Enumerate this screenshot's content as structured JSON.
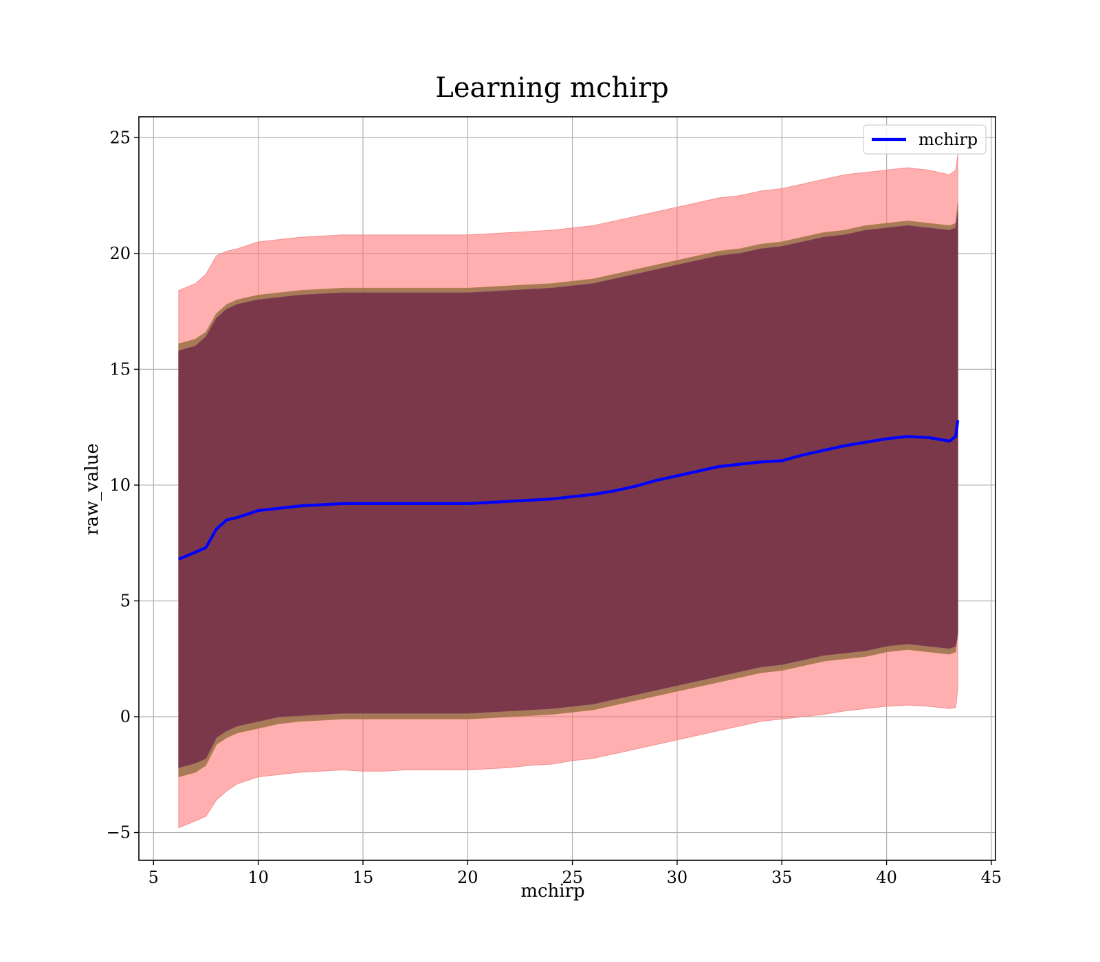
{
  "chart_data": {
    "type": "area",
    "title": "Learning mchirp",
    "xlabel": "mchirp",
    "ylabel": "raw_value",
    "xlim": [
      4.3,
      45.2
    ],
    "ylim": [
      -6.2,
      25.9
    ],
    "xticks": [
      5,
      10,
      15,
      20,
      25,
      30,
      35,
      40,
      45
    ],
    "yticks": [
      -5,
      0,
      5,
      10,
      15,
      20,
      25
    ],
    "xtick_labels": [
      "5",
      "10",
      "15",
      "20",
      "25",
      "30",
      "35",
      "40",
      "45"
    ],
    "ytick_labels": [
      "−5",
      "0",
      "5",
      "10",
      "15",
      "20",
      "25"
    ],
    "grid": true,
    "legend_position": "top-right",
    "x": [
      6.2,
      7,
      7.5,
      8,
      8.5,
      9,
      10,
      11,
      12,
      13,
      14,
      15,
      16,
      17,
      18,
      19,
      20,
      21,
      22,
      23,
      24,
      25,
      26,
      27,
      28,
      29,
      30,
      31,
      32,
      33,
      34,
      35,
      36,
      37,
      38,
      39,
      40,
      41,
      42,
      43,
      43.3,
      43.4
    ],
    "series": [
      {
        "name": "mchirp",
        "role": "line",
        "color": "#0000ff",
        "values": [
          6.8,
          7.1,
          7.3,
          8.1,
          8.5,
          8.6,
          8.9,
          9.0,
          9.1,
          9.15,
          9.2,
          9.2,
          9.2,
          9.2,
          9.2,
          9.2,
          9.2,
          9.25,
          9.3,
          9.35,
          9.4,
          9.5,
          9.6,
          9.75,
          9.95,
          10.2,
          10.4,
          10.6,
          10.8,
          10.9,
          11.0,
          11.05,
          11.3,
          11.5,
          11.7,
          11.85,
          12.0,
          12.1,
          12.05,
          11.9,
          12.1,
          12.8
        ]
      },
      {
        "name": "outer band upper",
        "role": "band_upper",
        "color": "#ff6d6d",
        "values": [
          18.4,
          18.7,
          19.1,
          19.9,
          20.1,
          20.2,
          20.5,
          20.6,
          20.7,
          20.75,
          20.8,
          20.8,
          20.8,
          20.8,
          20.8,
          20.8,
          20.8,
          20.85,
          20.9,
          20.95,
          21.0,
          21.1,
          21.2,
          21.4,
          21.6,
          21.8,
          22.0,
          22.2,
          22.4,
          22.5,
          22.7,
          22.8,
          23.0,
          23.2,
          23.4,
          23.5,
          23.6,
          23.7,
          23.6,
          23.4,
          23.6,
          24.3
        ]
      },
      {
        "name": "outer band lower",
        "role": "band_lower",
        "color": "#ff6d6d",
        "values": [
          -4.8,
          -4.5,
          -4.3,
          -3.6,
          -3.2,
          -2.9,
          -2.6,
          -2.5,
          -2.4,
          -2.35,
          -2.3,
          -2.35,
          -2.35,
          -2.3,
          -2.3,
          -2.3,
          -2.3,
          -2.25,
          -2.2,
          -2.1,
          -2.05,
          -1.9,
          -1.8,
          -1.6,
          -1.4,
          -1.2,
          -1.0,
          -0.8,
          -0.6,
          -0.4,
          -0.2,
          -0.1,
          0.0,
          0.1,
          0.25,
          0.35,
          0.45,
          0.5,
          0.45,
          0.35,
          0.4,
          1.2
        ]
      },
      {
        "name": "mid band upper",
        "role": "band_upper",
        "color": "#a06a3a",
        "values": [
          16.1,
          16.3,
          16.6,
          17.4,
          17.8,
          18.0,
          18.2,
          18.3,
          18.4,
          18.45,
          18.5,
          18.5,
          18.5,
          18.5,
          18.5,
          18.5,
          18.5,
          18.55,
          18.6,
          18.65,
          18.7,
          18.8,
          18.9,
          19.1,
          19.3,
          19.5,
          19.7,
          19.9,
          20.1,
          20.2,
          20.4,
          20.5,
          20.7,
          20.9,
          21.0,
          21.2,
          21.3,
          21.4,
          21.3,
          21.2,
          21.3,
          22.2
        ]
      },
      {
        "name": "mid band lower",
        "role": "band_lower",
        "color": "#a06a3a",
        "values": [
          -2.6,
          -2.4,
          -2.1,
          -1.2,
          -0.9,
          -0.7,
          -0.5,
          -0.3,
          -0.2,
          -0.15,
          -0.1,
          -0.1,
          -0.1,
          -0.1,
          -0.1,
          -0.1,
          -0.1,
          -0.05,
          0.0,
          0.05,
          0.1,
          0.2,
          0.3,
          0.5,
          0.7,
          0.9,
          1.1,
          1.3,
          1.5,
          1.7,
          1.9,
          2.0,
          2.2,
          2.4,
          2.5,
          2.6,
          2.8,
          2.9,
          2.8,
          2.7,
          2.8,
          3.8
        ]
      },
      {
        "name": "inner band upper",
        "role": "band_upper",
        "color": "#6a1a3a",
        "values": [
          15.8,
          16.0,
          16.4,
          17.2,
          17.6,
          17.8,
          18.0,
          18.1,
          18.2,
          18.25,
          18.3,
          18.3,
          18.3,
          18.3,
          18.3,
          18.3,
          18.3,
          18.35,
          18.4,
          18.45,
          18.5,
          18.6,
          18.7,
          18.9,
          19.1,
          19.3,
          19.5,
          19.7,
          19.9,
          20.0,
          20.2,
          20.3,
          20.5,
          20.7,
          20.8,
          21.0,
          21.1,
          21.2,
          21.1,
          21.0,
          21.1,
          21.8
        ]
      },
      {
        "name": "inner band lower",
        "role": "band_lower",
        "color": "#6a1a3a",
        "values": [
          -2.2,
          -2.0,
          -1.8,
          -0.9,
          -0.6,
          -0.4,
          -0.2,
          0.0,
          0.05,
          0.1,
          0.15,
          0.15,
          0.15,
          0.15,
          0.15,
          0.15,
          0.15,
          0.2,
          0.25,
          0.3,
          0.35,
          0.45,
          0.55,
          0.75,
          0.95,
          1.15,
          1.35,
          1.55,
          1.75,
          1.95,
          2.15,
          2.25,
          2.45,
          2.65,
          2.75,
          2.85,
          3.05,
          3.15,
          3.05,
          2.95,
          3.05,
          3.6
        ]
      }
    ],
    "legend": [
      {
        "label": "mchirp",
        "color": "#0000ff"
      }
    ]
  }
}
